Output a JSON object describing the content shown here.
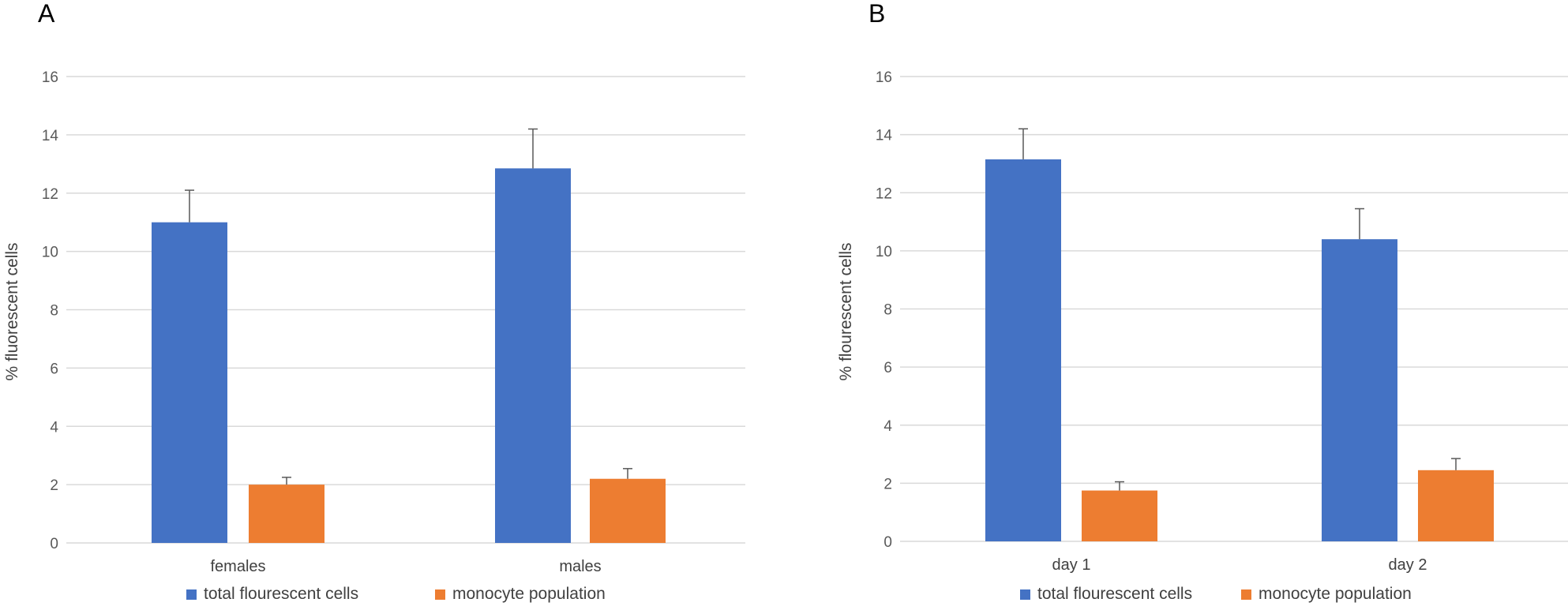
{
  "colors": {
    "total": "#4472C4",
    "monocyte": "#ED7D31",
    "grid": "#D9D9D9",
    "error": "#595959"
  },
  "chart_data": [
    {
      "panel": "A",
      "type": "bar",
      "ylabel": "% fluorescent cells",
      "ylim": [
        0,
        16
      ],
      "yticks": [
        0,
        2,
        4,
        6,
        8,
        10,
        12,
        14,
        16
      ],
      "categories": [
        "females",
        "males"
      ],
      "series": [
        {
          "name": "total flourescent cells",
          "values": [
            11.0,
            12.85
          ],
          "errors": [
            1.1,
            1.35
          ]
        },
        {
          "name": "monocyte population",
          "values": [
            2.0,
            2.2
          ],
          "errors": [
            0.25,
            0.35
          ]
        }
      ],
      "legend": "bottom"
    },
    {
      "panel": "B",
      "type": "bar",
      "ylabel": "% flourescent cells",
      "ylim": [
        0,
        16
      ],
      "yticks": [
        0,
        2,
        4,
        6,
        8,
        10,
        12,
        14,
        16
      ],
      "categories": [
        "day 1",
        "day 2"
      ],
      "series": [
        {
          "name": "total flourescent cells",
          "values": [
            13.15,
            10.4
          ],
          "errors": [
            1.05,
            1.05
          ]
        },
        {
          "name": "monocyte population",
          "values": [
            1.75,
            2.45
          ],
          "errors": [
            0.3,
            0.4
          ]
        }
      ],
      "legend": "bottom"
    }
  ]
}
